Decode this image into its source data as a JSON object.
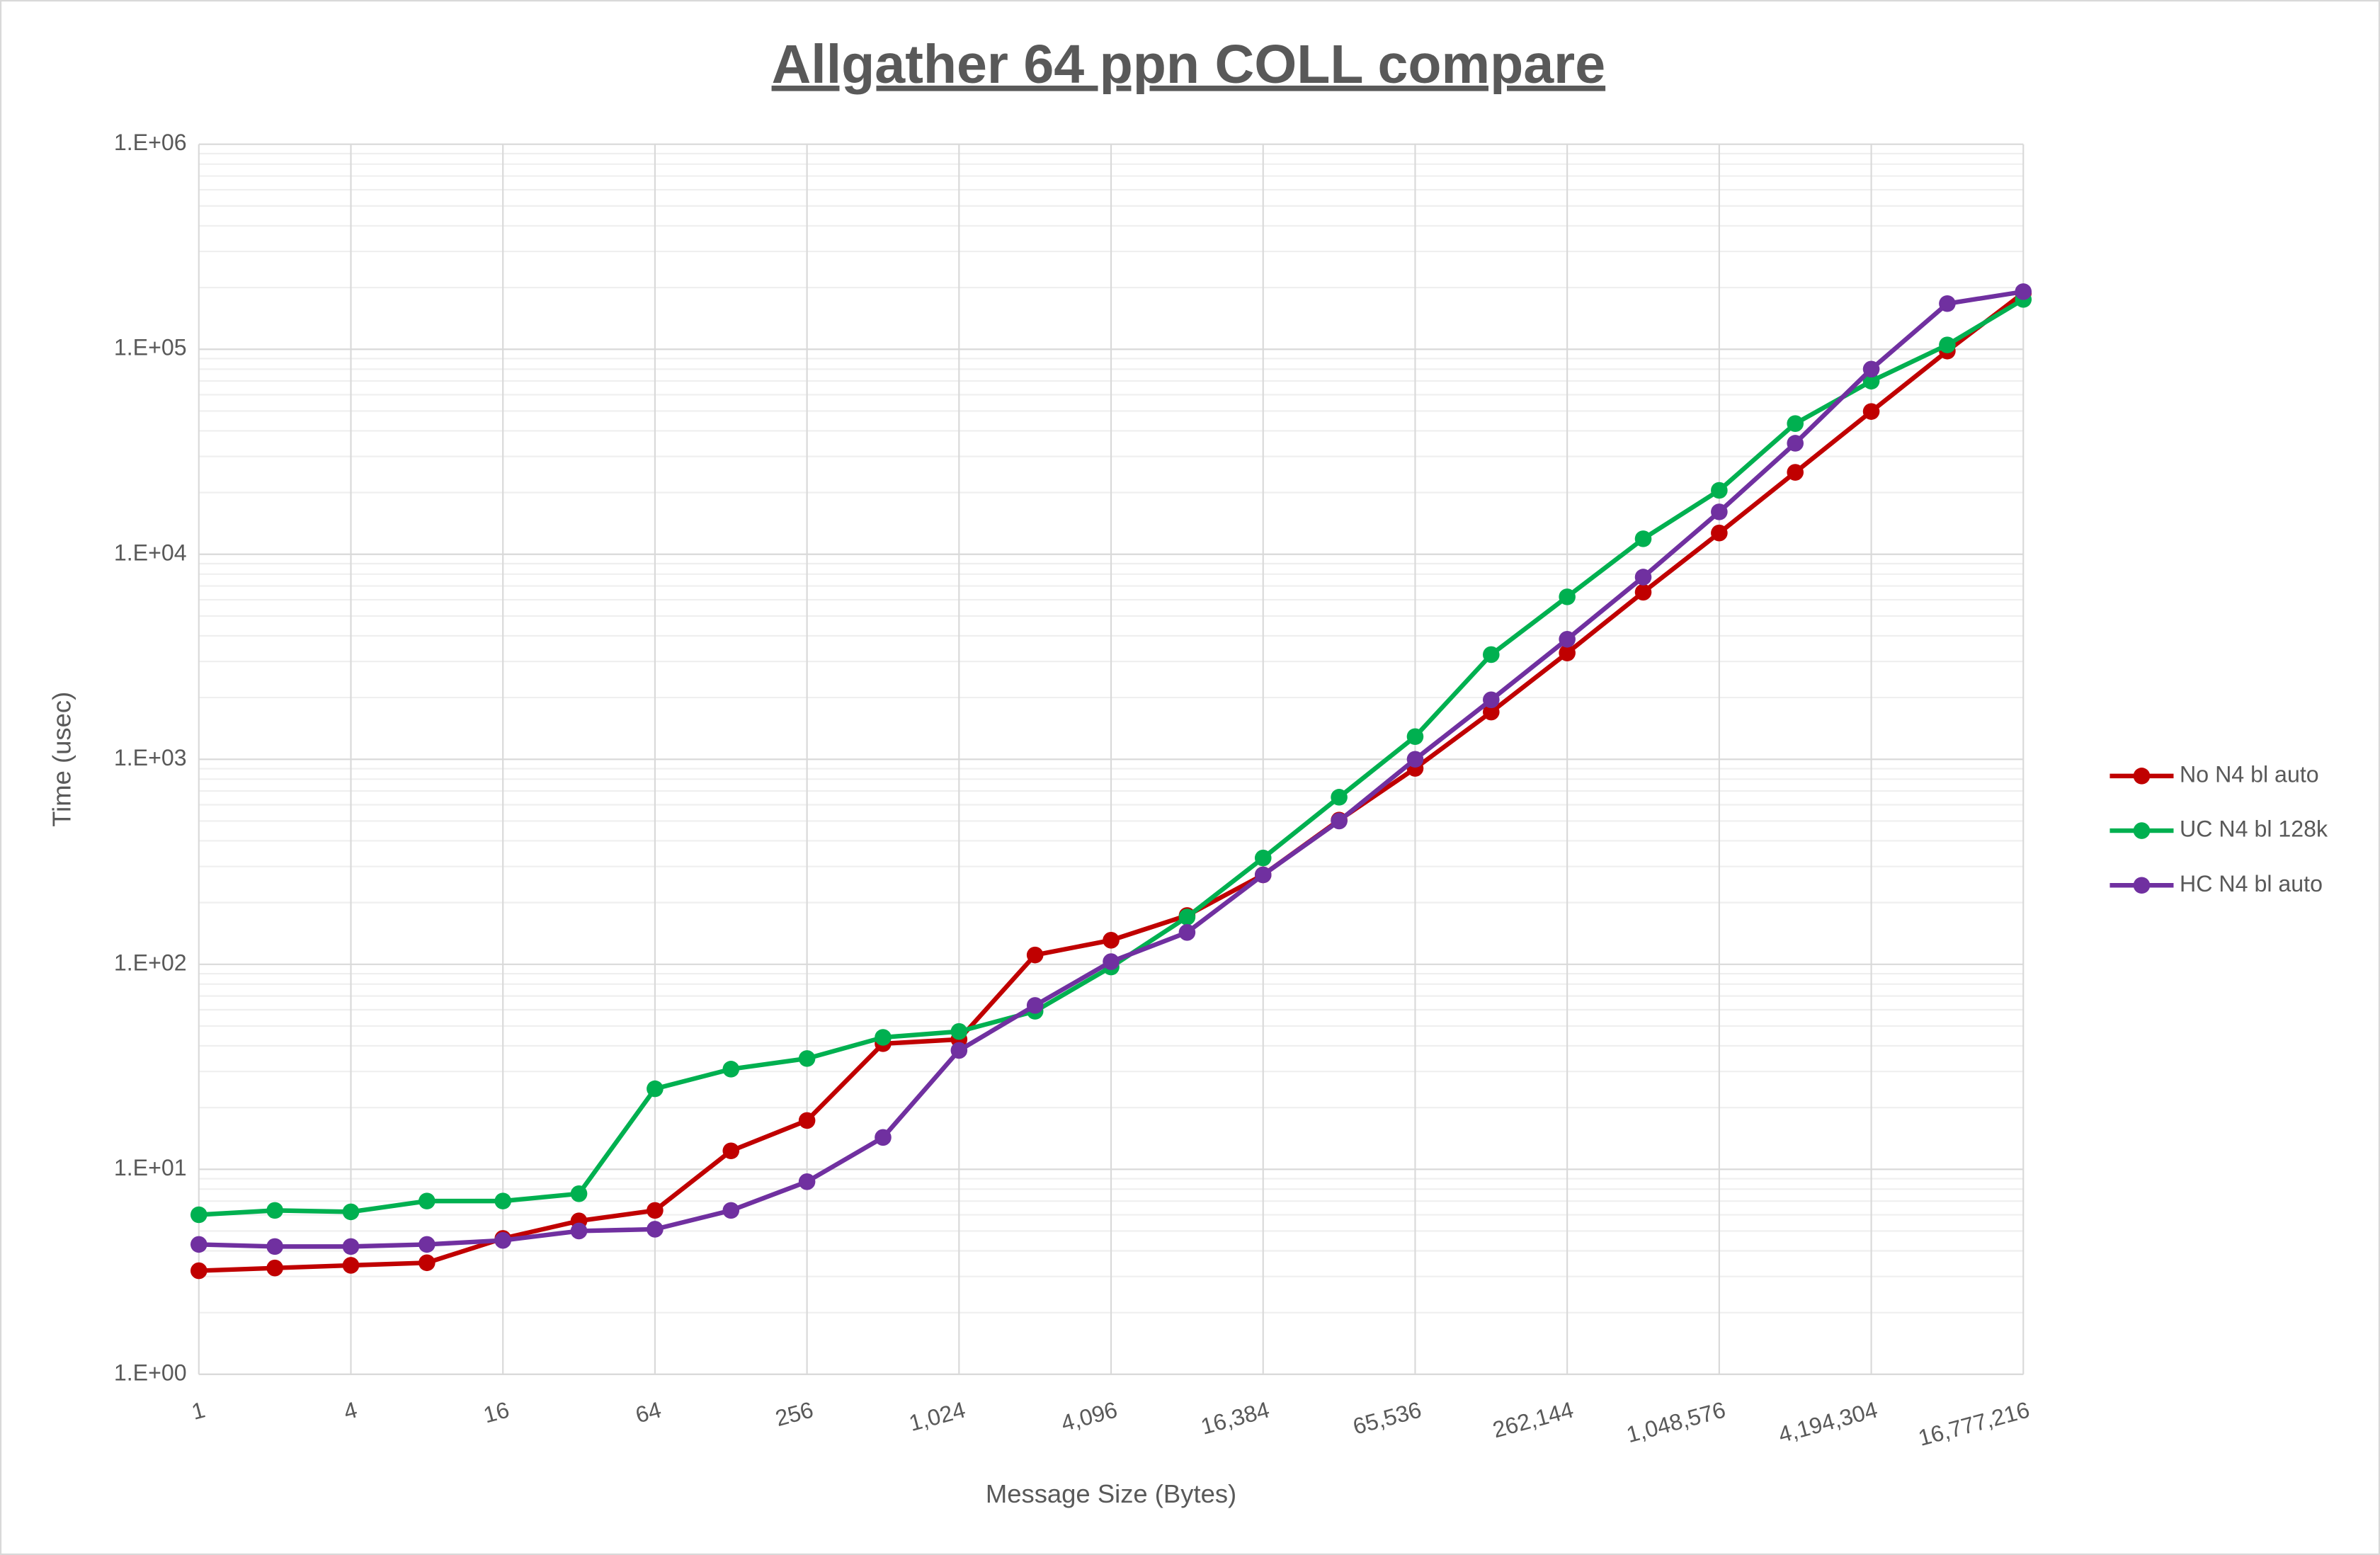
{
  "chart_data": {
    "type": "line",
    "title": "Allgather 64 ppn COLL compare",
    "xlabel": "Message Size (Bytes)",
    "ylabel": "Time (usec)",
    "x": [
      1,
      2,
      4,
      8,
      16,
      32,
      64,
      128,
      256,
      512,
      1024,
      2048,
      4096,
      8192,
      16384,
      32768,
      65536,
      131072,
      262144,
      524288,
      1048576,
      2097152,
      4194304,
      8388608,
      16777216
    ],
    "xlog": true,
    "ylog": true,
    "grid": true,
    "legend": "right",
    "xlim": [
      1,
      16777216
    ],
    "xticks": [
      1,
      4,
      16,
      64,
      256,
      {
        "value": 1024,
        "label": "1,024"
      },
      {
        "value": 4096,
        "label": "4,096"
      },
      {
        "value": 16384,
        "label": "16,384"
      },
      {
        "value": 65536,
        "label": "65,536"
      },
      {
        "value": 262144,
        "label": "262,144"
      },
      {
        "value": 1048576,
        "label": "1,048,576"
      },
      {
        "value": 4194304,
        "label": "4,194,304"
      },
      {
        "value": 16777216,
        "label": "16,777,216"
      }
    ],
    "ylim": [
      1,
      1000000
    ],
    "yticks": [
      {
        "value": 1,
        "label": "1.E+00"
      },
      {
        "value": 10,
        "label": "1.E+01"
      },
      {
        "value": 100,
        "label": "1.E+02"
      },
      {
        "value": 1000,
        "label": "1.E+03"
      },
      {
        "value": 10000,
        "label": "1.E+04"
      },
      {
        "value": 100000,
        "label": "1.E+05"
      },
      {
        "value": 1000000,
        "label": "1.E+06"
      }
    ],
    "series": [
      {
        "name": "No N4 bl auto",
        "color": "#c00000",
        "values": [
          3.2,
          3.3,
          3.4,
          3.5,
          4.6,
          5.6,
          6.3,
          12.3,
          17.3,
          41,
          43,
          111,
          131,
          173,
          273,
          505,
          903,
          1700,
          3300,
          6530,
          12700,
          25100,
          49700,
          98000,
          188000
        ]
      },
      {
        "name": "UC N4 bl 128k",
        "color": "#00b050",
        "values": [
          6.0,
          6.3,
          6.2,
          7.0,
          7.0,
          7.6,
          24.7,
          30.8,
          34.7,
          44,
          47,
          59,
          97,
          170,
          330,
          653,
          1290,
          3240,
          6200,
          11900,
          20500,
          43400,
          69900,
          105000,
          175000
        ]
      },
      {
        "name": "HC N4 bl auto",
        "color": "#7030a0",
        "values": [
          4.3,
          4.2,
          4.2,
          4.3,
          4.5,
          5.0,
          5.1,
          6.3,
          8.7,
          14.3,
          38,
          63,
          103,
          143,
          273,
          500,
          1000,
          1950,
          3850,
          7740,
          16100,
          34800,
          80000,
          167000,
          191000
        ]
      }
    ]
  }
}
